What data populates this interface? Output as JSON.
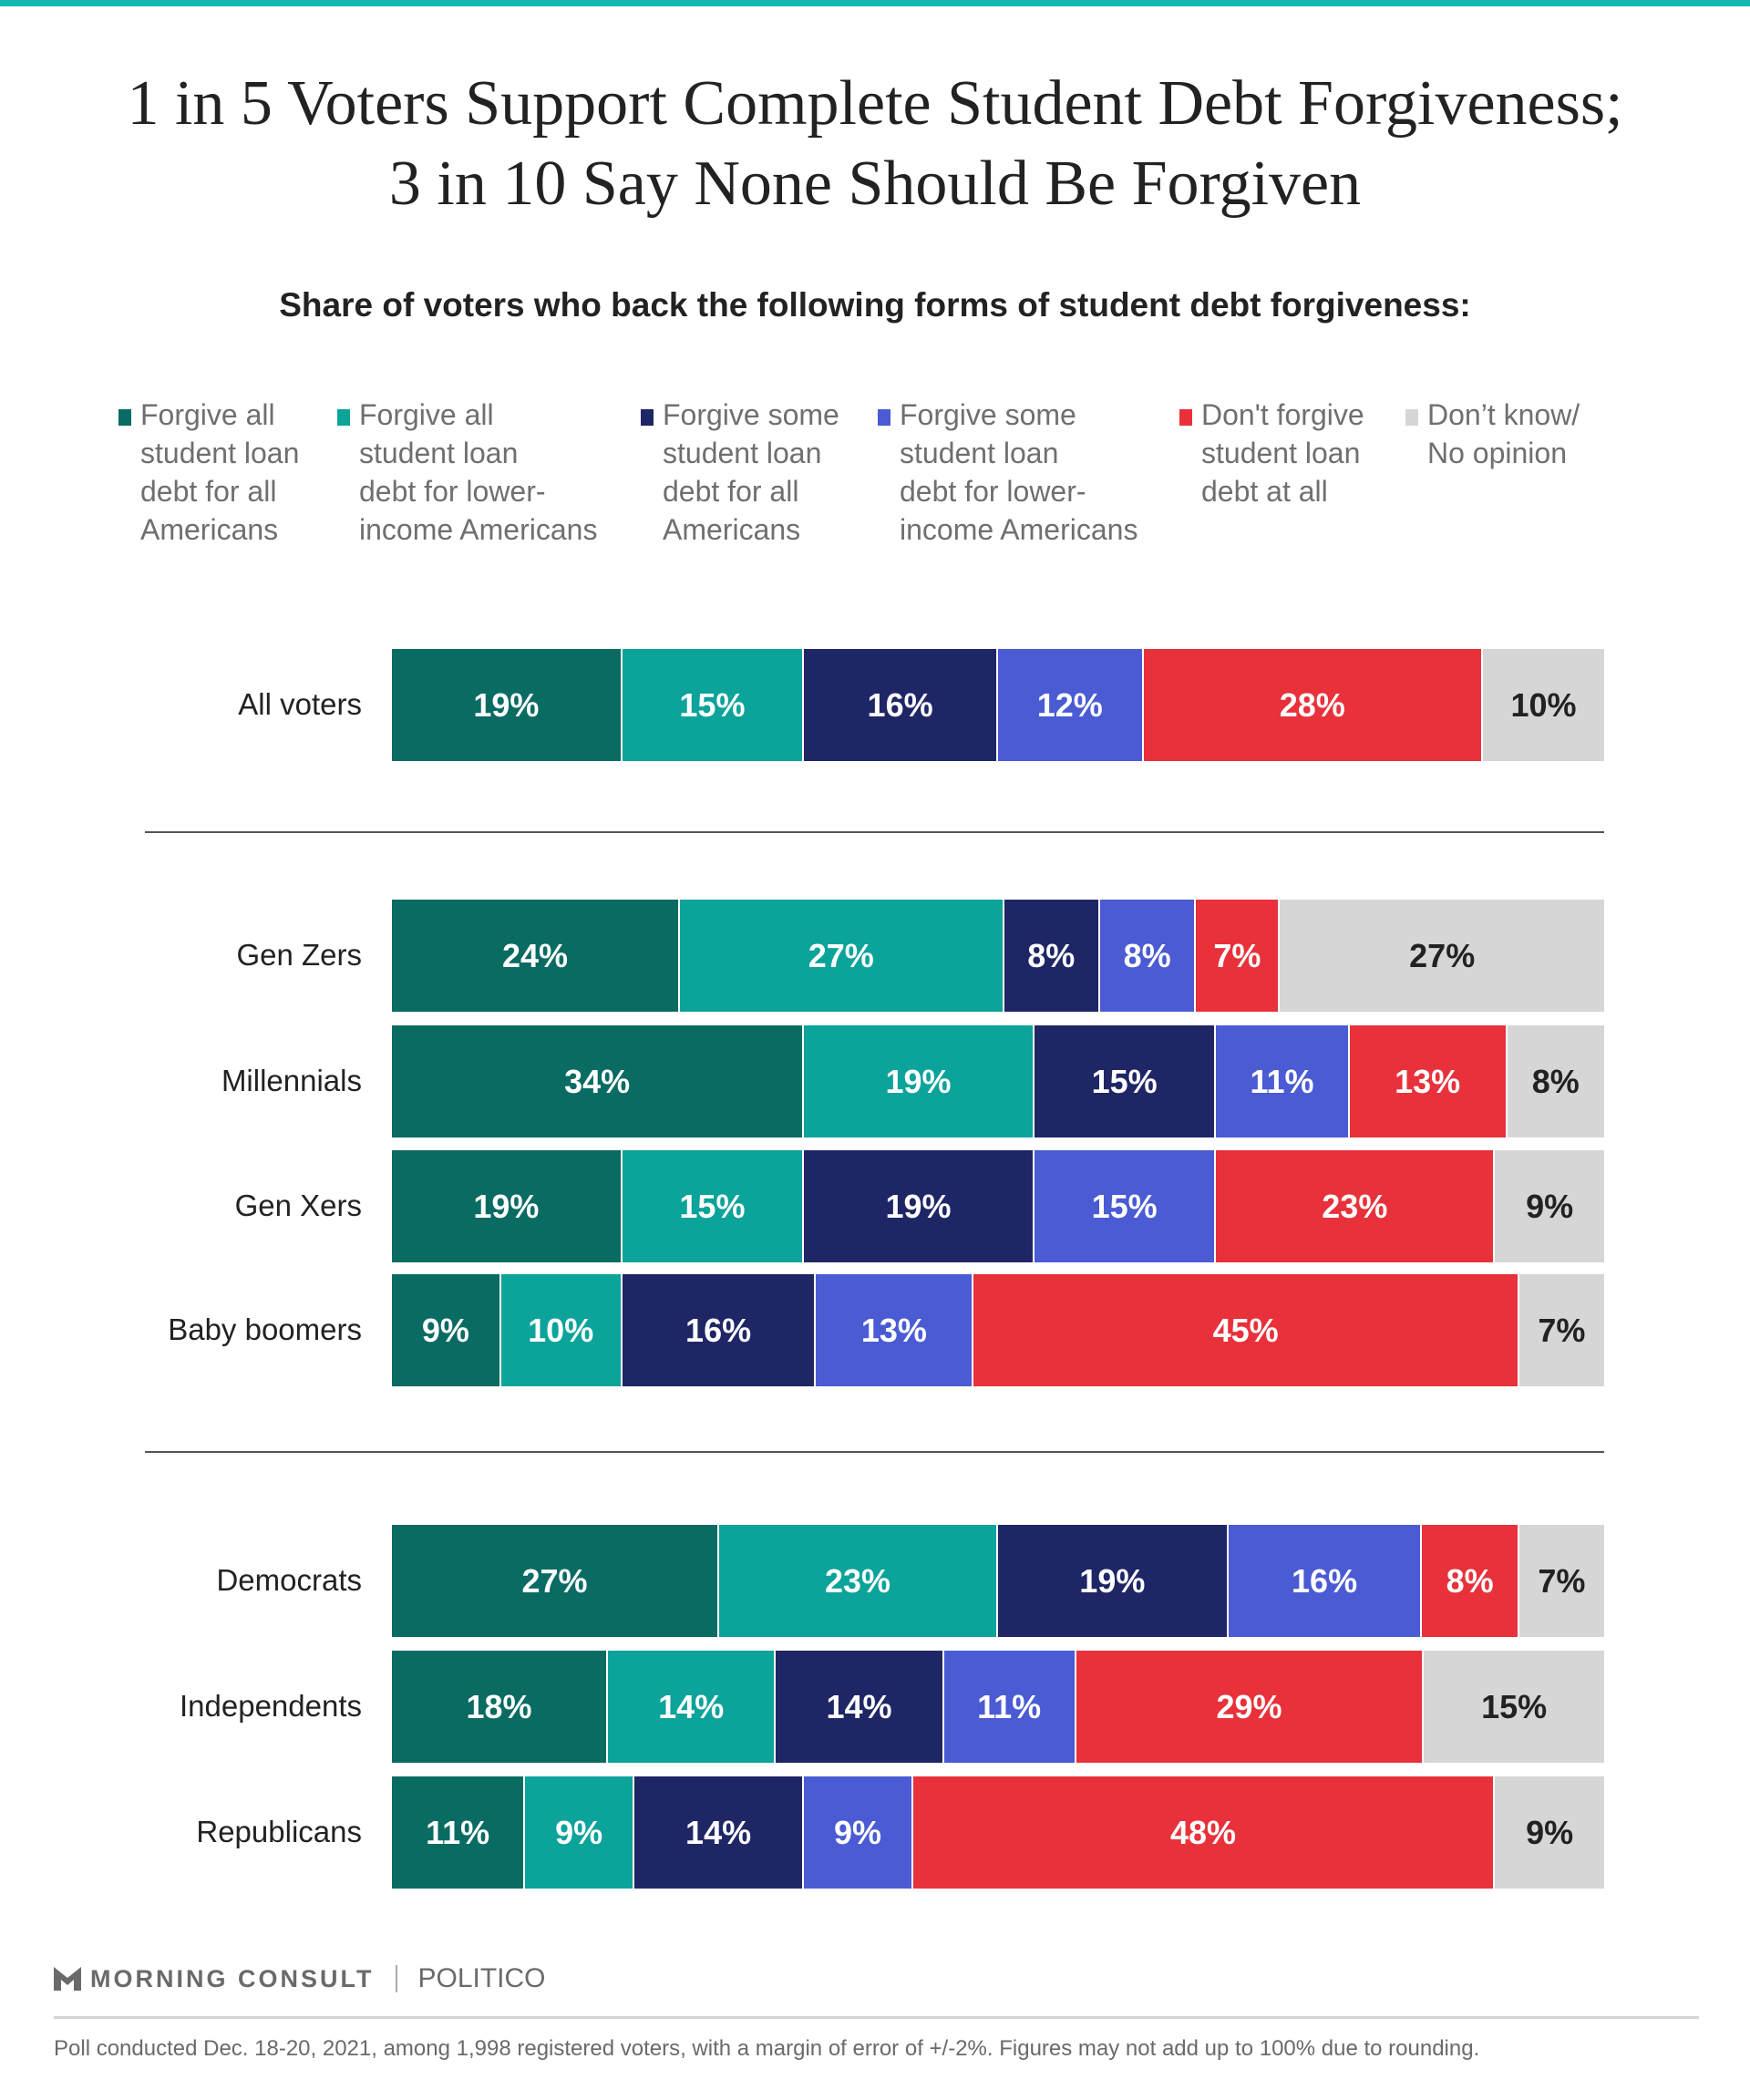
{
  "title_lines": [
    "1 in 5 Voters Support Complete Student Debt Forgiveness;",
    "3 in 10 Say None Should Be Forgiven"
  ],
  "subtitle": "Share of voters who back the following forms of student debt forgiveness:",
  "branding": {
    "logo": "MORNING CONSULT",
    "partner": "POLITICO"
  },
  "footnote": "Poll conducted Dec. 18-20, 2021, among 1,998 registered voters, with a margin of error of +/-2%. Figures may not add up to 100% due to rounding.",
  "chart_data": {
    "type": "bar",
    "stacked": true,
    "orientation": "horizontal",
    "legend_placement": "top",
    "categories": [
      "All voters",
      "Gen Zers",
      "Millennials",
      "Gen Xers",
      "Baby boomers",
      "Democrats",
      "Independents",
      "Republicans"
    ],
    "series": [
      {
        "name": "Forgive all student loan debt for all Americans",
        "color": "#0a6b63",
        "values": [
          19,
          24,
          34,
          19,
          9,
          27,
          18,
          11
        ]
      },
      {
        "name": "Forgive all student loan debt for lower-income Americans",
        "color": "#0ba39a",
        "values": [
          15,
          27,
          19,
          15,
          10,
          23,
          14,
          9
        ]
      },
      {
        "name": "Forgive some student loan debt for all Americans",
        "color": "#1f2666",
        "values": [
          16,
          8,
          15,
          19,
          16,
          19,
          14,
          14
        ]
      },
      {
        "name": "Forgive some student loan debt for lower-income Americans",
        "color": "#4a5bd4",
        "values": [
          12,
          8,
          11,
          15,
          13,
          16,
          11,
          9
        ]
      },
      {
        "name": "Don't forgive student loan debt at all",
        "color": "#e8313a",
        "values": [
          28,
          7,
          13,
          23,
          45,
          8,
          29,
          48
        ]
      },
      {
        "name": "Don’t know/ No opinion",
        "color": "#d6d6d6",
        "values": [
          10,
          27,
          8,
          9,
          7,
          7,
          15,
          9
        ]
      }
    ],
    "legend_lines": [
      [
        "Forgive all",
        "student loan",
        "debt for all",
        "Americans"
      ],
      [
        "Forgive all",
        "student loan",
        "debt for lower-",
        "income Americans"
      ],
      [
        "Forgive some",
        "student loan",
        "debt for all",
        "Americans"
      ],
      [
        "Forgive some",
        "student loan",
        "debt for lower-",
        "income Americans"
      ],
      [
        "Don't forgive",
        "student loan",
        "debt at all"
      ],
      [
        "Don’t know/",
        "No opinion"
      ]
    ],
    "value_suffix": "%"
  }
}
